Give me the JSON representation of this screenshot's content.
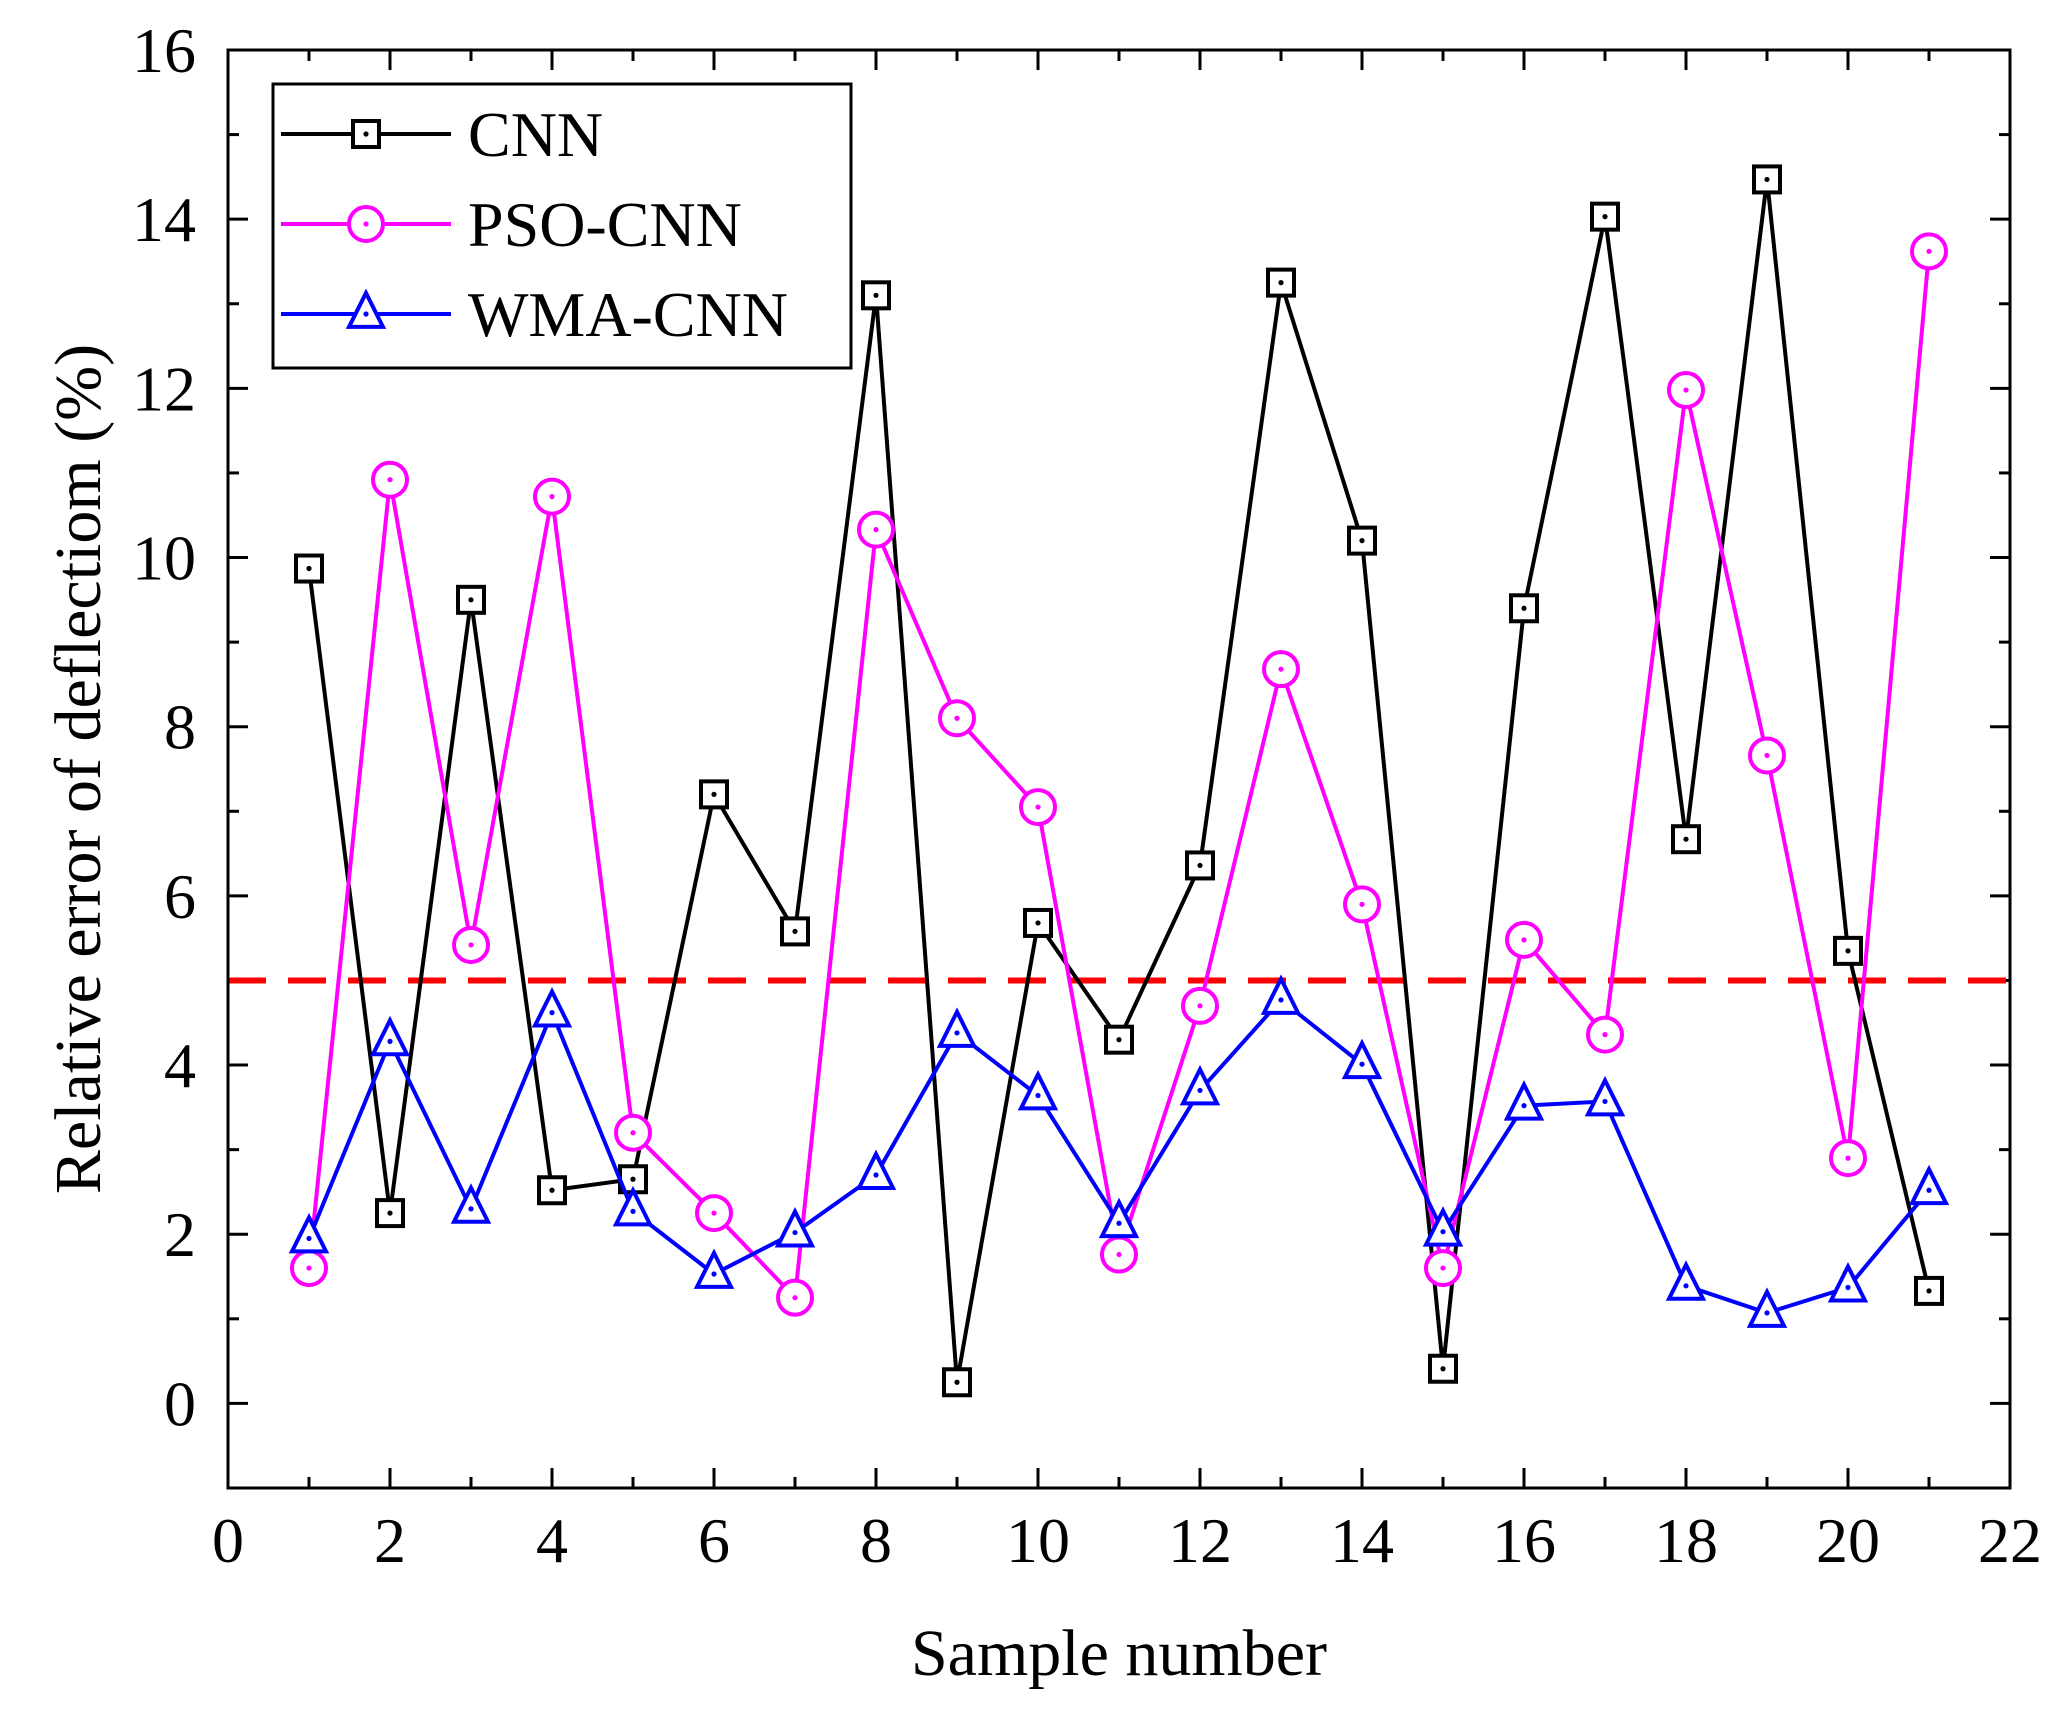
{
  "chart_data": {
    "type": "line",
    "xlabel": "Sample number",
    "ylabel": "Relative error of deflectiom (%)",
    "xlim": [
      0,
      22
    ],
    "ylim": [
      -1,
      16
    ],
    "xticks": [
      0,
      2,
      4,
      6,
      8,
      10,
      12,
      14,
      16,
      18,
      20,
      22
    ],
    "yticks": [
      0,
      2,
      4,
      6,
      8,
      10,
      12,
      14,
      16
    ],
    "x": [
      1,
      2,
      3,
      4,
      5,
      6,
      7,
      8,
      9,
      10,
      11,
      12,
      13,
      14,
      15,
      16,
      17,
      18,
      19,
      20,
      21
    ],
    "series": [
      {
        "name": "CNN",
        "color": "#000000",
        "marker": "square",
        "values": [
          9.87,
          2.25,
          9.5,
          2.52,
          2.65,
          7.2,
          5.58,
          13.1,
          0.25,
          5.68,
          4.3,
          6.36,
          13.25,
          10.2,
          0.41,
          9.4,
          14.03,
          6.67,
          14.47,
          5.35,
          1.33
        ]
      },
      {
        "name": "PSO-CNN",
        "color": "#ff00ff",
        "marker": "circle",
        "values": [
          1.6,
          10.92,
          5.42,
          10.72,
          3.2,
          2.25,
          1.25,
          10.33,
          8.1,
          7.05,
          1.76,
          4.7,
          8.68,
          5.9,
          1.6,
          5.48,
          4.36,
          11.98,
          7.66,
          2.9,
          13.62
        ]
      },
      {
        "name": "WMA-CNN",
        "color": "#0000ff",
        "marker": "triangle",
        "values": [
          1.95,
          4.28,
          2.3,
          4.62,
          2.27,
          1.53,
          2.02,
          2.7,
          4.38,
          3.64,
          2.13,
          3.7,
          4.77,
          4.01,
          2.03,
          3.52,
          3.57,
          1.39,
          1.07,
          1.37,
          2.52
        ]
      }
    ],
    "reference_line": {
      "y": 5,
      "color": "#ff0000",
      "style": "dashed"
    },
    "legend": {
      "position": "top-left"
    },
    "grid": false
  }
}
